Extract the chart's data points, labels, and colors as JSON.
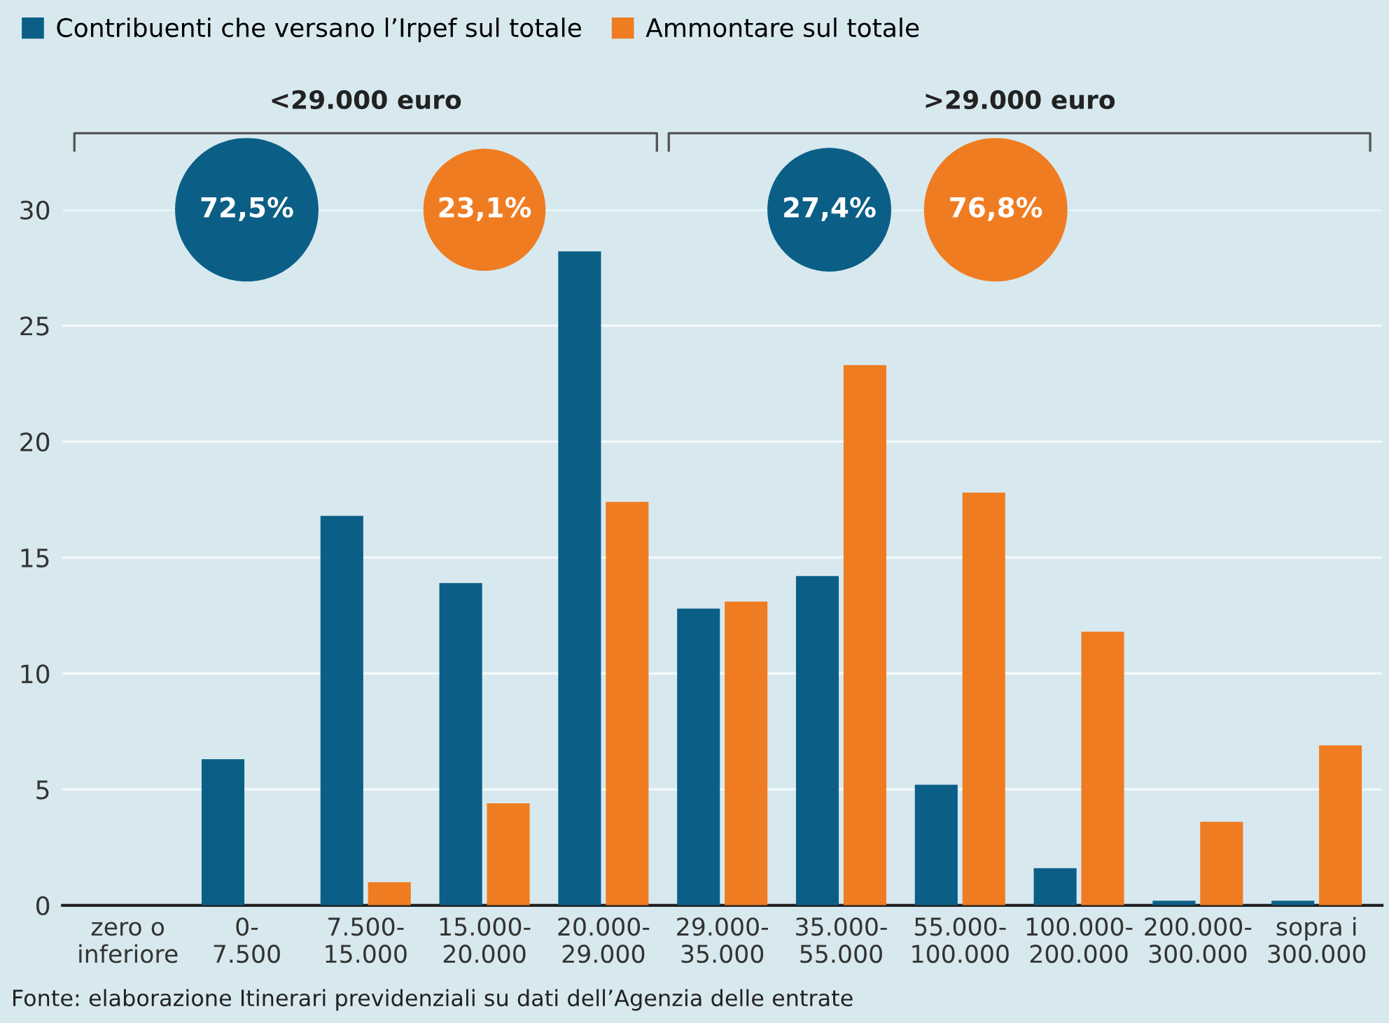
{
  "chart_data": {
    "type": "bar",
    "categories": [
      "zero o\ninferiore",
      "0-\n7.500",
      "7.500-\n15.000",
      "15.000-\n20.000",
      "20.000-\n29.000",
      "29.000-\n35.000",
      "35.000-\n55.000",
      "55.000-\n100.000",
      "100.000-\n200.000",
      "200.000-\n300.000",
      "sopra i\n300.000"
    ],
    "series": [
      {
        "name": "Contribuenti che versano l’Irpef sul totale",
        "color": "#0b5f86",
        "values": [
          0,
          6.3,
          16.8,
          13.9,
          28.2,
          12.8,
          14.2,
          5.2,
          1.6,
          0.2,
          0.2
        ]
      },
      {
        "name": "Ammontare sul totale",
        "color": "#f07c22",
        "values": [
          0,
          0,
          1.0,
          4.4,
          17.4,
          13.1,
          23.3,
          17.8,
          11.8,
          3.6,
          6.9
        ]
      }
    ],
    "ylim": [
      0,
      30
    ],
    "yticks": [
      0,
      5,
      10,
      15,
      20,
      25,
      30
    ],
    "grid": "y",
    "legend": "top left",
    "annotations": [
      "<29.000 euro",
      ">29.000 euro",
      "72,5%",
      "23,1%",
      "27,4%",
      "76,8%",
      "Fonte: elaborazione Itinerari previdenziali su dati dell’Agenzia delle entrate"
    ]
  }
}
